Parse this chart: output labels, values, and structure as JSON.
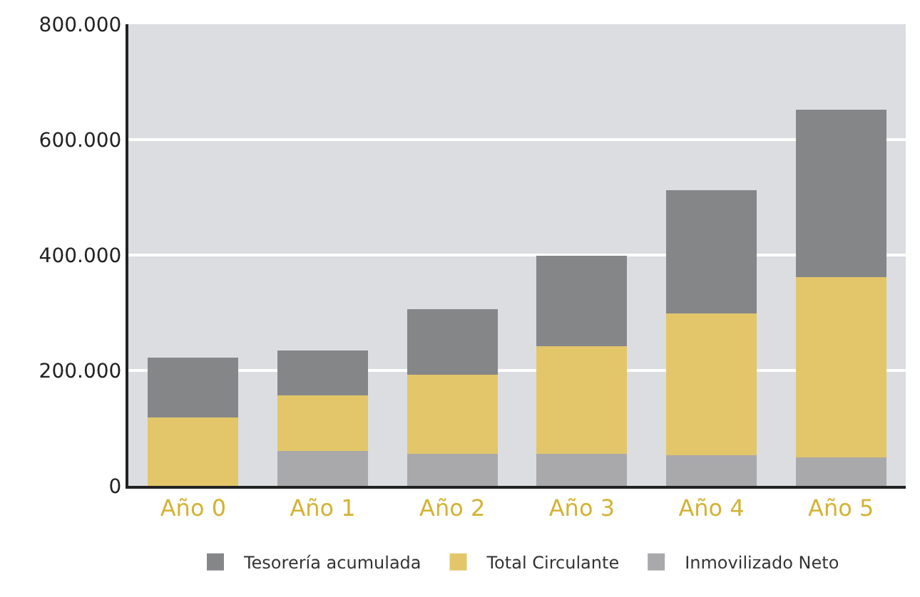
{
  "chart_data": {
    "type": "bar",
    "stacked": true,
    "categories": [
      "Año 0",
      "Año 1",
      "Año 2",
      "Año 3",
      "Año 4",
      "Año 5"
    ],
    "series": [
      {
        "name": "Inmovilizado Neto",
        "color": "#a9a9ab",
        "values": [
          0,
          60000,
          55000,
          55000,
          53000,
          50000
        ]
      },
      {
        "name": "Total Circulante",
        "color": "#e3c66a",
        "values": [
          118000,
          97000,
          138000,
          187000,
          246000,
          312000
        ]
      },
      {
        "name": "Tesorería acumulada",
        "color": "#858688",
        "values": [
          104000,
          77000,
          113000,
          157000,
          213000,
          290000
        ]
      }
    ],
    "ylim": [
      0,
      800000
    ],
    "yticks": [
      {
        "value": 0,
        "label": "0"
      },
      {
        "value": 200000,
        "label": "200.000"
      },
      {
        "value": 400000,
        "label": "400.000"
      },
      {
        "value": 600000,
        "label": "600.000"
      },
      {
        "value": 800000,
        "label": "800.000"
      }
    ],
    "grid": "y",
    "legend": "bottom"
  }
}
